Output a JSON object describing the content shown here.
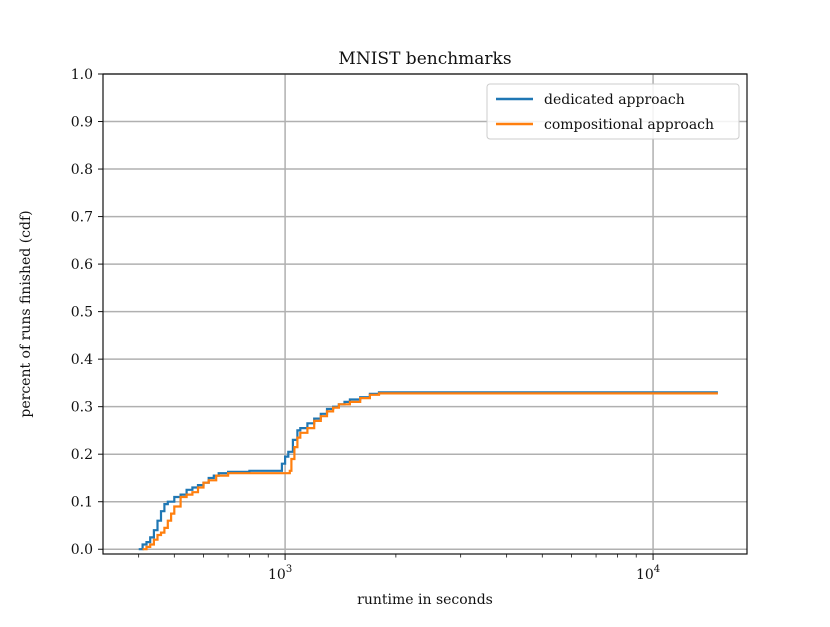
{
  "chart_data": {
    "type": "line",
    "title": "MNIST benchmarks",
    "xlabel": "runtime in seconds",
    "ylabel": "percent of runs finished (cdf)",
    "xscale": "log",
    "xlim": [
      320,
      18000
    ],
    "ylim": [
      -0.01,
      1.0
    ],
    "grid": true,
    "legend_position": "top-right",
    "y_ticks": [
      "0.0",
      "0.1",
      "0.2",
      "0.3",
      "0.4",
      "0.5",
      "0.6",
      "0.7",
      "0.8",
      "0.9",
      "1.0"
    ],
    "y_tick_values": [
      0,
      0.1,
      0.2,
      0.3,
      0.4,
      0.5,
      0.6,
      0.7,
      0.8,
      0.9,
      1.0
    ],
    "x_ticks": [
      {
        "value": 1000,
        "base": "10",
        "exp": "3"
      },
      {
        "value": 10000,
        "base": "10",
        "exp": "4"
      }
    ],
    "series": [
      {
        "name": "dedicated approach",
        "color": "#1f77b4",
        "x": [
          400,
          410,
          420,
          430,
          440,
          450,
          460,
          470,
          480,
          500,
          520,
          540,
          560,
          580,
          600,
          620,
          640,
          660,
          700,
          800,
          900,
          960,
          980,
          1000,
          1020,
          1050,
          1080,
          1100,
          1150,
          1200,
          1250,
          1300,
          1350,
          1400,
          1450,
          1500,
          1600,
          1700,
          1800,
          15000
        ],
        "y": [
          0.0,
          0.01,
          0.015,
          0.025,
          0.04,
          0.06,
          0.08,
          0.095,
          0.1,
          0.11,
          0.115,
          0.125,
          0.13,
          0.135,
          0.14,
          0.15,
          0.155,
          0.16,
          0.163,
          0.165,
          0.165,
          0.165,
          0.18,
          0.195,
          0.205,
          0.23,
          0.25,
          0.255,
          0.265,
          0.275,
          0.285,
          0.295,
          0.3,
          0.305,
          0.31,
          0.315,
          0.32,
          0.327,
          0.33,
          0.33
        ]
      },
      {
        "name": "compositional approach",
        "color": "#ff7f0e",
        "x": [
          410,
          420,
          430,
          440,
          450,
          460,
          470,
          480,
          490,
          500,
          520,
          540,
          560,
          580,
          600,
          620,
          650,
          700,
          800,
          900,
          1000,
          1030,
          1040,
          1060,
          1080,
          1100,
          1150,
          1200,
          1250,
          1300,
          1350,
          1400,
          1500,
          1600,
          1700,
          1800,
          15000
        ],
        "y": [
          0.0,
          0.005,
          0.01,
          0.02,
          0.03,
          0.035,
          0.045,
          0.06,
          0.075,
          0.09,
          0.11,
          0.115,
          0.12,
          0.13,
          0.14,
          0.145,
          0.155,
          0.16,
          0.16,
          0.16,
          0.16,
          0.165,
          0.19,
          0.215,
          0.235,
          0.245,
          0.255,
          0.27,
          0.28,
          0.29,
          0.298,
          0.305,
          0.31,
          0.318,
          0.325,
          0.328,
          0.328
        ]
      }
    ]
  }
}
